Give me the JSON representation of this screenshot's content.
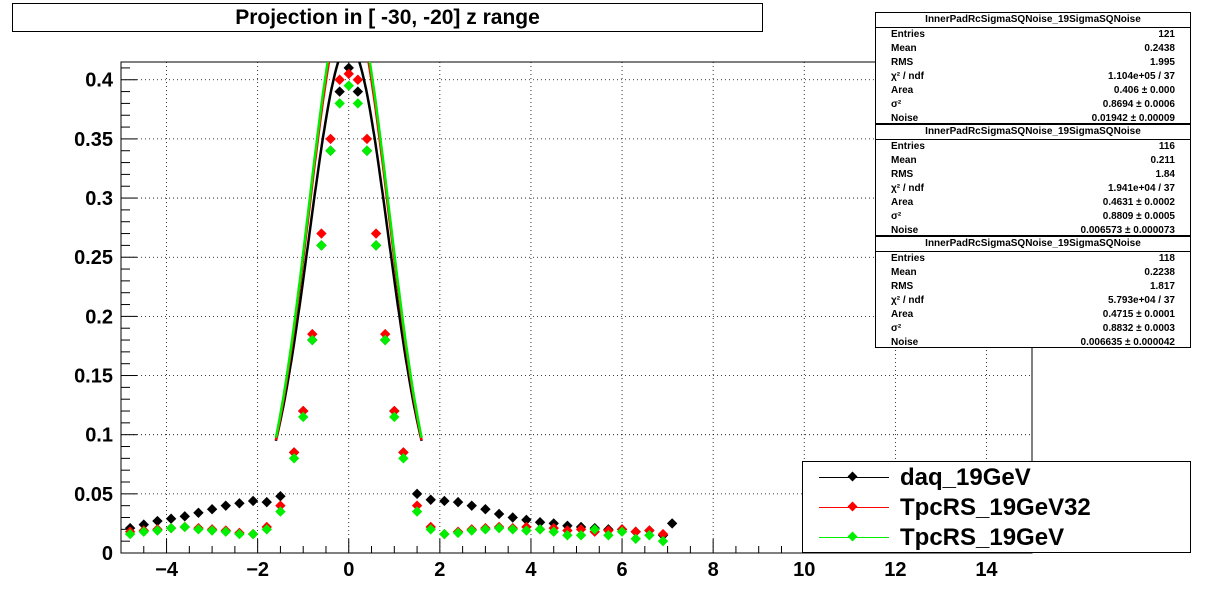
{
  "title": "Projection in [ -30, -20] z range",
  "colors": {
    "daq": "#000000",
    "rs32": "#ff0000",
    "rs": "#00ee00"
  },
  "chart_data": {
    "type": "scatter",
    "xlim": [
      -5,
      15
    ],
    "ylim": [
      0,
      0.415
    ],
    "x_ticks": [
      "−4",
      "−2",
      "0",
      "2",
      "4",
      "6",
      "8",
      "10",
      "12",
      "14"
    ],
    "x_tick_values": [
      -4,
      -2,
      0,
      2,
      4,
      6,
      8,
      10,
      12,
      14
    ],
    "y_ticks": [
      "0",
      "0.05",
      "0.1",
      "0.15",
      "0.2",
      "0.25",
      "0.3",
      "0.35",
      "0.4"
    ],
    "y_tick_values": [
      0,
      0.05,
      0.1,
      0.15,
      0.2,
      0.25,
      0.3,
      0.35,
      0.4
    ],
    "grid": true,
    "legend_position": "bottom-right",
    "series": [
      {
        "name": "daq_19GeV",
        "color": "#000000",
        "x": [
          -4.8,
          -4.5,
          -4.2,
          -3.9,
          -3.6,
          -3.3,
          -3.0,
          -2.7,
          -2.4,
          -2.1,
          -1.8,
          -1.5,
          -1.2,
          -1.0,
          -0.8,
          -0.6,
          -0.4,
          -0.2,
          0.0,
          0.2,
          0.4,
          0.6,
          0.8,
          1.0,
          1.2,
          1.5,
          1.8,
          2.1,
          2.4,
          2.7,
          3.0,
          3.3,
          3.6,
          3.9,
          4.2,
          4.5,
          4.8,
          5.1,
          5.4,
          5.7,
          6.0,
          6.3,
          6.6,
          6.9,
          7.1
        ],
        "y": [
          0.021,
          0.024,
          0.027,
          0.029,
          0.031,
          0.034,
          0.037,
          0.04,
          0.042,
          0.044,
          0.043,
          0.048,
          0.085,
          0.12,
          0.18,
          0.26,
          0.34,
          0.39,
          0.41,
          0.39,
          0.34,
          0.26,
          0.18,
          0.12,
          0.085,
          0.05,
          0.045,
          0.044,
          0.043,
          0.04,
          0.037,
          0.033,
          0.03,
          0.028,
          0.026,
          0.025,
          0.023,
          0.022,
          0.021,
          0.02,
          0.02,
          0.018,
          0.019,
          0.015,
          0.025
        ]
      },
      {
        "name": "TpcRS_19GeV32",
        "color": "#ff0000",
        "x": [
          -4.8,
          -4.5,
          -4.2,
          -3.9,
          -3.6,
          -3.3,
          -3.0,
          -2.7,
          -2.4,
          -2.1,
          -1.8,
          -1.5,
          -1.2,
          -1.0,
          -0.8,
          -0.6,
          -0.4,
          -0.2,
          0.0,
          0.2,
          0.4,
          0.6,
          0.8,
          1.0,
          1.2,
          1.5,
          1.8,
          2.1,
          2.4,
          2.7,
          3.0,
          3.3,
          3.6,
          3.9,
          4.2,
          4.5,
          4.8,
          5.1,
          5.4,
          5.7,
          6.0,
          6.3,
          6.6,
          6.9
        ],
        "y": [
          0.018,
          0.019,
          0.02,
          0.021,
          0.022,
          0.021,
          0.02,
          0.019,
          0.017,
          0.016,
          0.022,
          0.04,
          0.085,
          0.12,
          0.185,
          0.27,
          0.35,
          0.4,
          0.405,
          0.4,
          0.35,
          0.27,
          0.185,
          0.12,
          0.085,
          0.04,
          0.022,
          0.016,
          0.018,
          0.02,
          0.021,
          0.022,
          0.021,
          0.022,
          0.02,
          0.021,
          0.019,
          0.02,
          0.018,
          0.019,
          0.02,
          0.018,
          0.019,
          0.016
        ]
      },
      {
        "name": "TpcRS_19GeV",
        "color": "#00ee00",
        "x": [
          -4.8,
          -4.5,
          -4.2,
          -3.9,
          -3.6,
          -3.3,
          -3.0,
          -2.7,
          -2.4,
          -2.1,
          -1.8,
          -1.5,
          -1.2,
          -1.0,
          -0.8,
          -0.6,
          -0.4,
          -0.2,
          0.0,
          0.2,
          0.4,
          0.6,
          0.8,
          1.0,
          1.2,
          1.5,
          1.8,
          2.1,
          2.4,
          2.7,
          3.0,
          3.3,
          3.6,
          3.9,
          4.2,
          4.5,
          4.8,
          5.1,
          5.4,
          5.7,
          6.0,
          6.3,
          6.6,
          6.9
        ],
        "y": [
          0.016,
          0.018,
          0.019,
          0.021,
          0.022,
          0.02,
          0.019,
          0.018,
          0.016,
          0.016,
          0.02,
          0.035,
          0.08,
          0.115,
          0.18,
          0.26,
          0.34,
          0.38,
          0.395,
          0.38,
          0.34,
          0.26,
          0.18,
          0.115,
          0.08,
          0.035,
          0.02,
          0.016,
          0.017,
          0.019,
          0.02,
          0.021,
          0.02,
          0.019,
          0.02,
          0.018,
          0.015,
          0.015,
          0.02,
          0.015,
          0.018,
          0.012,
          0.015,
          0.01
        ]
      }
    ]
  },
  "stats": [
    {
      "title": "InnerPadRcSigmaSQNoise_19SigmaSQNoise",
      "rows": [
        [
          "Entries",
          "121"
        ],
        [
          "Mean",
          "0.2438"
        ],
        [
          "RMS",
          "1.995"
        ],
        [
          "χ² / ndf",
          "1.104e+05 / 37"
        ],
        [
          "Area",
          "0.406 ± 0.000"
        ],
        [
          "σ²",
          "0.8694 ± 0.0006"
        ],
        [
          "Noise",
          "0.01942 ± 0.00009"
        ]
      ]
    },
    {
      "title": "InnerPadRcSigmaSQNoise_19SigmaSQNoise",
      "rows": [
        [
          "Entries",
          "116"
        ],
        [
          "Mean",
          "0.211"
        ],
        [
          "RMS",
          "1.84"
        ],
        [
          "χ² / ndf",
          "1.941e+04 / 37"
        ],
        [
          "Area",
          "0.4631 ± 0.0002"
        ],
        [
          "σ²",
          "0.8809 ± 0.0005"
        ],
        [
          "Noise",
          "0.006573 ± 0.000073"
        ]
      ]
    },
    {
      "title": "InnerPadRcSigmaSQNoise_19SigmaSQNoise",
      "rows": [
        [
          "Entries",
          "118"
        ],
        [
          "Mean",
          "0.2238"
        ],
        [
          "RMS",
          "1.817"
        ],
        [
          "χ² / ndf",
          "5.793e+04 / 37"
        ],
        [
          "Area",
          "0.4715 ± 0.0001"
        ],
        [
          "σ²",
          "0.8832 ± 0.0003"
        ],
        [
          "Noise",
          "0.006635 ± 0.000042"
        ]
      ]
    }
  ],
  "legend": [
    {
      "label": "daq_19GeV",
      "color": "#000000"
    },
    {
      "label": "TpcRS_19GeV32",
      "color": "#ff0000"
    },
    {
      "label": "TpcRS_19GeV",
      "color": "#00ee00"
    }
  ]
}
